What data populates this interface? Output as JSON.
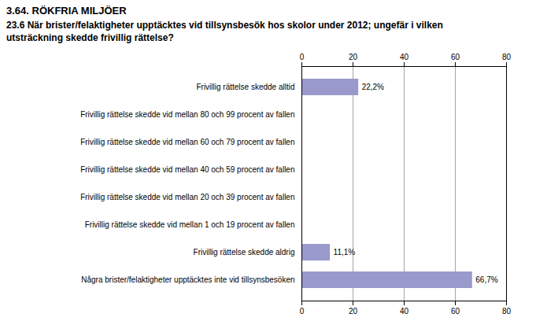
{
  "chart_data": {
    "type": "bar",
    "orientation": "horizontal",
    "title": "3.64. RÖKFRIA MILJÖER",
    "subtitle": "23.6 När brister/felaktigheter upptäcktes vid tillsynsbesök hos skolor under 2012; ungefär i vilken\nutsträckning skedde frivillig rättelse?",
    "categories": [
      "Frivillig rättelse skedde alltid",
      "Frivillig rättelse skedde vid mellan 80 och 99 procent av fallen",
      "Frivillig rättelse skedde vid mellan 60 och 79 procent av fallen",
      "Frivillig rättelse skedde vid mellan 40 och 59 procent av fallen",
      "Frivillig rättelse skedde vid mellan 20 och 39 procent av fallen",
      "Frivillig rättelse skedde vid mellan 1 och 19 procent av fallen",
      "Frivillig rättelse skedde aldrig",
      "Några brister/felaktigheter upptäcktes inte vid tillsynsbesöken"
    ],
    "values": [
      22.2,
      0,
      0,
      0,
      0,
      0,
      11.1,
      66.7
    ],
    "value_labels": [
      "22,2%",
      null,
      null,
      null,
      null,
      null,
      "11,1%",
      "66,7%"
    ],
    "data_labels": true,
    "color": "#9999cc",
    "xlim": [
      0,
      80
    ],
    "xticks": [
      0,
      20,
      40,
      60,
      80
    ],
    "grid": true
  }
}
